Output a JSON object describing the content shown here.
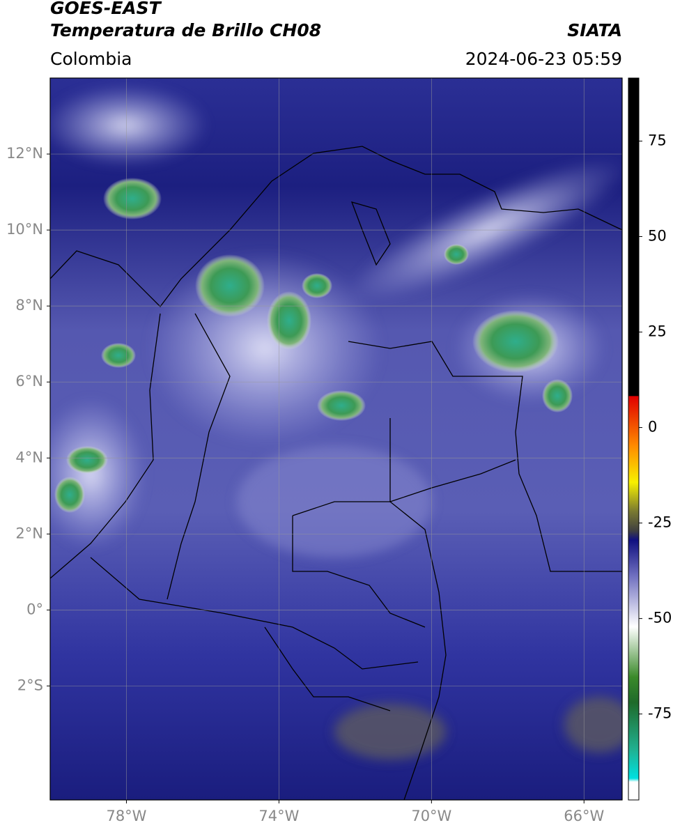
{
  "header": {
    "title": "GOES-EAST",
    "subtitle": "Temperatura de Brillo CH08",
    "source": "SIATA",
    "region": "Colombia",
    "datetime": "2024-06-23 05:59"
  },
  "map": {
    "xlim": [
      -80,
      -65
    ],
    "ylim": [
      -5,
      14
    ],
    "xticks": [
      {
        "value": -78,
        "label": "78°W"
      },
      {
        "value": -74,
        "label": "74°W"
      },
      {
        "value": -70,
        "label": "70°W"
      },
      {
        "value": -66,
        "label": "66°W"
      }
    ],
    "yticks": [
      {
        "value": -2,
        "label": "2°S"
      },
      {
        "value": 0,
        "label": "0°"
      },
      {
        "value": 2,
        "label": "2°N"
      },
      {
        "value": 4,
        "label": "4°N"
      },
      {
        "value": 6,
        "label": "6°N"
      },
      {
        "value": 8,
        "label": "8°N"
      },
      {
        "value": 10,
        "label": "10°N"
      },
      {
        "value": 12,
        "label": "12°N"
      }
    ],
    "grid": true
  },
  "colorbar": {
    "lim": [
      -97.5,
      91.5
    ],
    "ticks": [
      75,
      50,
      25,
      0,
      -25,
      -50,
      -75
    ]
  }
}
